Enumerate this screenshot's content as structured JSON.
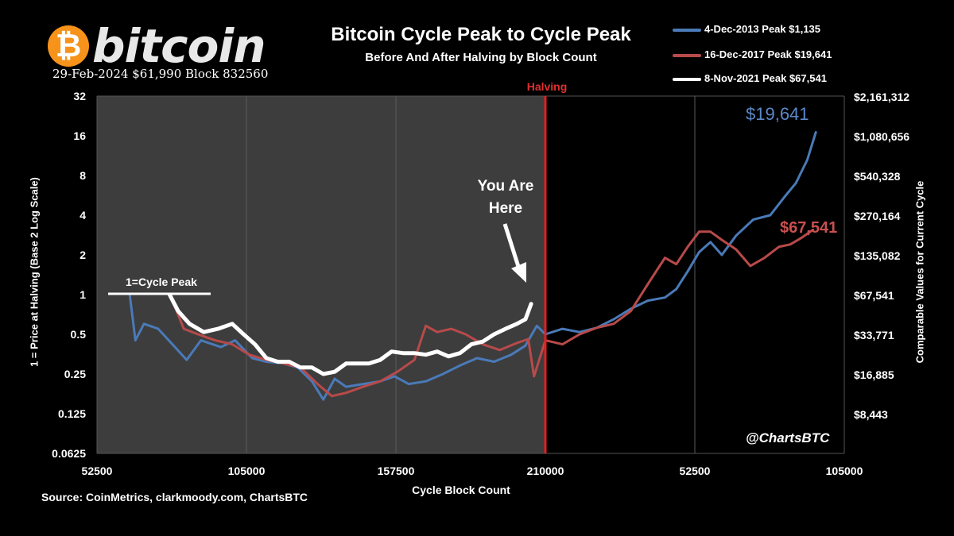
{
  "header": {
    "logo_symbol": "₿",
    "logo_word": "bitcoin",
    "price_line": "29-Feb-2024 $61,990 Block 832560",
    "title": "Bitcoin Cycle Peak to Cycle Peak",
    "subtitle": "Before And After Halving by Block Count"
  },
  "legend": [
    {
      "label": "4-Dec-2013 Peak $1,135",
      "color": "#4a7ab8"
    },
    {
      "label": "16-Dec-2017 Peak $19,641",
      "color": "#b84a4a"
    },
    {
      "label": "8-Nov-2021 Peak $67,541",
      "color": "#ffffff"
    }
  ],
  "annotations": {
    "halving": "Halving",
    "cycle_peak": "1=Cycle Peak",
    "you_are": "You Are",
    "here": "Here",
    "blue_end_value": "$19,641",
    "red_end_value": "$67,541",
    "handle": "@ChartsBTC"
  },
  "footer": {
    "source": "Source:  CoinMetrics, clarkmoody.com, ChartsBTC",
    "xlabel": "Cycle Block Count"
  },
  "chart_data": {
    "type": "line",
    "title": "Bitcoin Cycle Peak to Cycle Peak",
    "subtitle": "Before And After Halving by Block Count",
    "xlabel": "Cycle Block Count",
    "ylabel_left": "1 = Price at Halving (Base 2 Log Scale)",
    "ylabel_right": "Comparable Values for Current Cycle",
    "y_scale": "log2",
    "ylim": [
      0.0625,
      32
    ],
    "left_ticks": [
      "32",
      "16",
      "8",
      "4",
      "2",
      "1",
      "0.5",
      "0.25",
      "0.125",
      "0.0625"
    ],
    "right_ticks": [
      "$2,161,312",
      "$1,080,656",
      "$540,328",
      "$270,164",
      "$135,082",
      "$67,541",
      "$33,771",
      "$16,885",
      "$8,443",
      ""
    ],
    "x_ticks": [
      "52500",
      "105000",
      "157500",
      "210000",
      "52500",
      "105000"
    ],
    "xlim": [
      52500,
      315000
    ],
    "halving_x": 210000,
    "shaded_region": [
      52500,
      210000
    ],
    "grid": "vertical",
    "legend_position": "top-right",
    "series": [
      {
        "name": "4-Dec-2013 Peak $1,135",
        "color": "#4a7ab8",
        "x": [
          64000,
          66000,
          69000,
          74000,
          79000,
          84000,
          89000,
          96000,
          101000,
          107000,
          112000,
          118000,
          123000,
          128000,
          132000,
          136000,
          140000,
          146000,
          152000,
          157000,
          162000,
          168000,
          174000,
          180000,
          186000,
          192000,
          198000,
          203000,
          207000,
          210000,
          216000,
          222000,
          228000,
          234000,
          240000,
          246000,
          252000,
          256000,
          260000,
          264000,
          268000,
          272000,
          277000,
          283000,
          289000,
          294000,
          298000,
          302000,
          305000
        ],
        "y": [
          1.0,
          0.45,
          0.6,
          0.55,
          0.42,
          0.32,
          0.45,
          0.4,
          0.45,
          0.33,
          0.31,
          0.3,
          0.28,
          0.22,
          0.16,
          0.23,
          0.2,
          0.21,
          0.22,
          0.24,
          0.21,
          0.22,
          0.25,
          0.29,
          0.33,
          0.31,
          0.35,
          0.41,
          0.58,
          0.5,
          0.55,
          0.52,
          0.56,
          0.65,
          0.78,
          0.9,
          0.95,
          1.1,
          1.5,
          2.1,
          2.5,
          2.0,
          2.8,
          3.7,
          4.0,
          5.5,
          7.0,
          10.5,
          17.0
        ]
      },
      {
        "name": "16-Dec-2017 Peak $19,641",
        "color": "#b84a4a",
        "x": [
          79000,
          83000,
          88000,
          94000,
          100000,
          106000,
          112000,
          118000,
          124000,
          130000,
          135000,
          140000,
          146000,
          152000,
          158000,
          164000,
          168000,
          172000,
          177000,
          182000,
          188000,
          194000,
          200000,
          204000,
          206000,
          210000,
          216000,
          222000,
          228000,
          234000,
          240000,
          246000,
          252000,
          256000,
          260000,
          264000,
          268000,
          272000,
          277000,
          282000,
          287000,
          292000,
          296000,
          300000,
          304000
        ],
        "y": [
          0.9,
          0.55,
          0.5,
          0.45,
          0.42,
          0.35,
          0.32,
          0.3,
          0.28,
          0.21,
          0.17,
          0.18,
          0.2,
          0.22,
          0.26,
          0.32,
          0.58,
          0.52,
          0.55,
          0.5,
          0.42,
          0.38,
          0.43,
          0.46,
          0.24,
          0.45,
          0.42,
          0.5,
          0.56,
          0.6,
          0.75,
          1.2,
          1.9,
          1.7,
          2.3,
          3.0,
          3.0,
          2.6,
          2.2,
          1.65,
          1.9,
          2.3,
          2.4,
          2.7,
          3.1
        ]
      },
      {
        "name": "8-Nov-2021 Peak $67,541",
        "color": "#ffffff",
        "x": [
          78000,
          81000,
          85000,
          90000,
          95000,
          100000,
          104000,
          108000,
          112000,
          116000,
          120000,
          124000,
          128000,
          132000,
          136000,
          140000,
          144000,
          148000,
          152000,
          156000,
          160000,
          164000,
          168000,
          172000,
          176000,
          180000,
          184000,
          188000,
          192000,
          196000,
          200000,
          203000,
          205000
        ],
        "y": [
          1.0,
          0.75,
          0.6,
          0.52,
          0.55,
          0.6,
          0.5,
          0.42,
          0.33,
          0.31,
          0.31,
          0.28,
          0.28,
          0.25,
          0.26,
          0.3,
          0.3,
          0.3,
          0.32,
          0.37,
          0.36,
          0.36,
          0.35,
          0.37,
          0.34,
          0.36,
          0.42,
          0.44,
          0.5,
          0.55,
          0.6,
          0.65,
          0.85
        ]
      }
    ]
  }
}
